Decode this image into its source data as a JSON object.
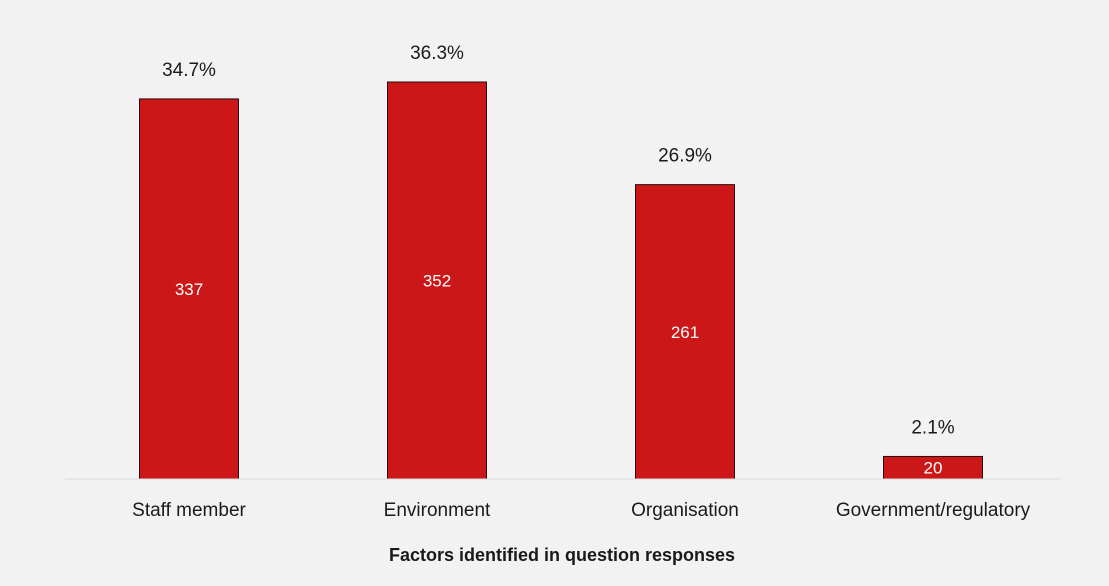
{
  "chart_data": {
    "type": "bar",
    "categories": [
      "Staff member",
      "Environment",
      "Organisation",
      "Government/regulatory"
    ],
    "values": [
      337,
      352,
      261,
      20
    ],
    "percent_labels": [
      "34.7%",
      "36.3%",
      "26.9%",
      "2.1%"
    ],
    "title": "",
    "xlabel": "Factors identified in question responses",
    "ylabel": "",
    "ylim": [
      0,
      400
    ],
    "grid": false,
    "legend": "none"
  },
  "colors": {
    "bar": "#cc1719",
    "bar_stroke": "#2a0a0a",
    "background": "#f2f2f2",
    "axis": "#d9d9d9",
    "inner_label": "#ffffff",
    "text": "#1a1a1a"
  }
}
